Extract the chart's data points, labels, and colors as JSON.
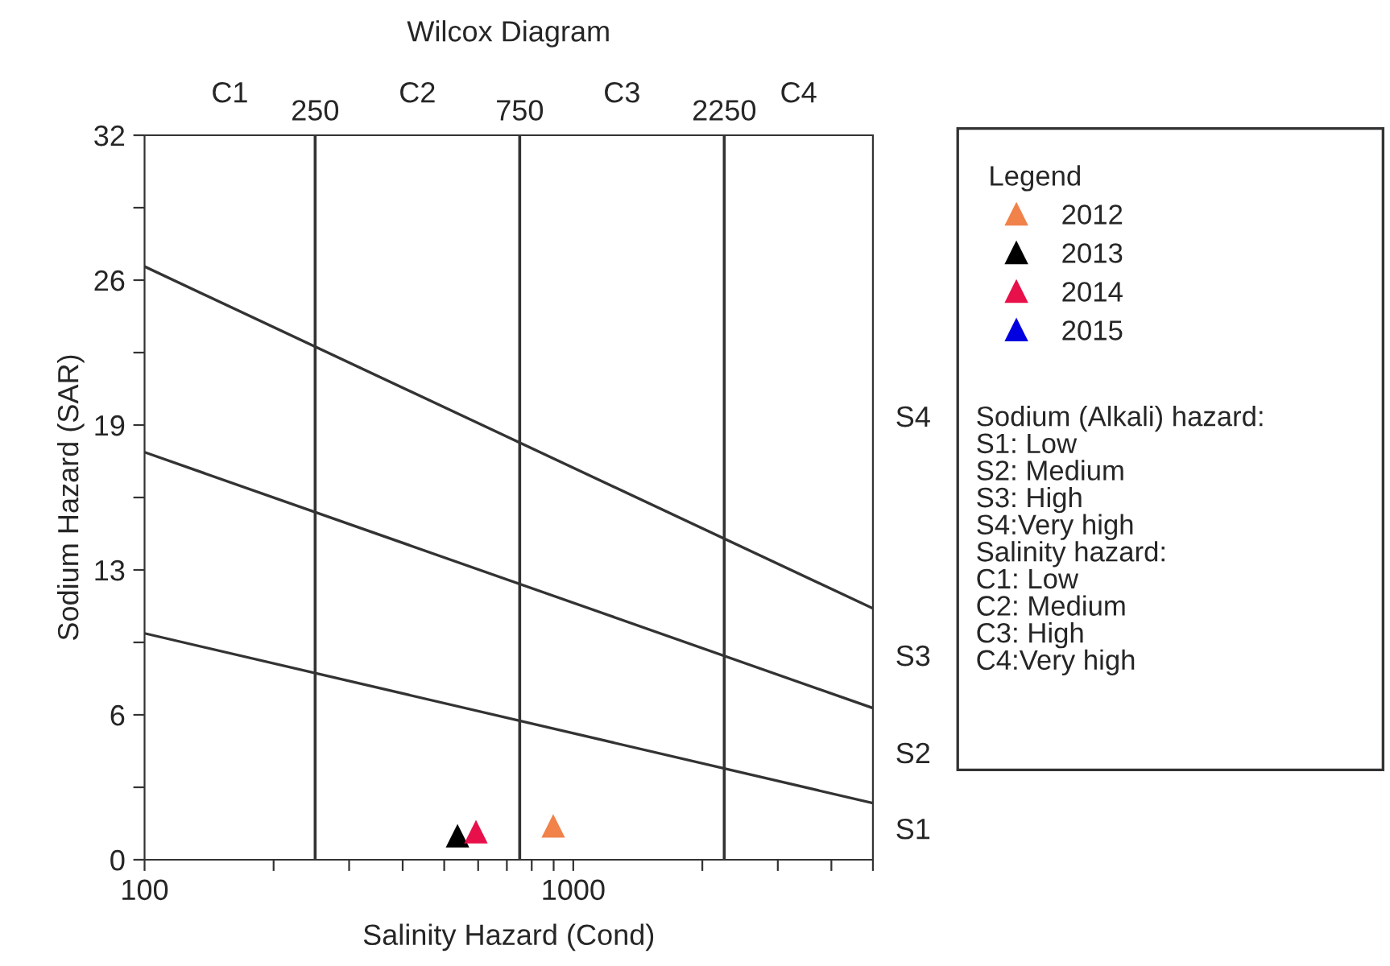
{
  "chart_data": {
    "type": "scatter",
    "title": "Wilcox Diagram",
    "xlabel": "Salinity Hazard (Cond)",
    "ylabel": "Sodium Hazard (SAR)",
    "legend_title": "Legend",
    "log": "x",
    "xlim": [
      100,
      5000
    ],
    "ylim": [
      0,
      32
    ],
    "xticks": [
      100,
      {
        "value": 200,
        "label": null
      },
      {
        "value": 300,
        "label": null
      },
      {
        "value": 400,
        "label": null
      },
      {
        "value": 500,
        "label": null
      },
      {
        "value": 600,
        "label": null
      },
      {
        "value": 700,
        "label": null
      },
      {
        "value": 800,
        "label": null
      },
      {
        "value": 900,
        "label": null
      },
      1000,
      {
        "value": 2000,
        "label": null
      },
      {
        "value": 3000,
        "label": null
      },
      {
        "value": 4000,
        "label": null
      },
      {
        "value": 5000,
        "label": null
      }
    ],
    "yticks": [
      0,
      {
        "value": 3.2,
        "label": null
      },
      {
        "value": 6.4,
        "label": "6"
      },
      {
        "value": 9.6,
        "label": null
      },
      {
        "value": 12.8,
        "label": "13"
      },
      {
        "value": 16,
        "label": null
      },
      {
        "value": 19.2,
        "label": "19"
      },
      {
        "value": 22.4,
        "label": null
      },
      {
        "value": 25.6,
        "label": "26"
      },
      {
        "value": 28.8,
        "label": null
      },
      32
    ],
    "marker": "triangle",
    "grid": false,
    "legend": "right",
    "series": [
      {
        "name": "2012",
        "color": "#f0824a",
        "x": [
          898
        ],
        "values": [
          1.5
        ]
      },
      {
        "name": "2013",
        "color": "#000000",
        "x": [
          537
        ],
        "values": [
          1.06
        ]
      },
      {
        "name": "2014",
        "color": "#e8104a",
        "x": [
          593
        ],
        "values": [
          1.24
        ]
      },
      {
        "name": "2015",
        "color": "#0000e0",
        "x": [
          null
        ],
        "values": [
          null
        ]
      },
      {
        "type": "line",
        "color": "#333333",
        "marker": "none",
        "x": [
          100,
          5000
        ],
        "values": [
          26.2,
          11.1
        ]
      },
      {
        "type": "line",
        "color": "#333333",
        "marker": "none",
        "x": [
          100,
          5000
        ],
        "values": [
          18.0,
          6.7
        ]
      },
      {
        "type": "line",
        "color": "#333333",
        "marker": "none",
        "x": [
          100,
          5000
        ],
        "values": [
          10.0,
          2.5
        ]
      }
    ],
    "ref_lines": [
      {
        "axis": "x",
        "value": 250,
        "label": "250",
        "color": "#333333"
      },
      {
        "axis": "x",
        "value": 750,
        "label": "750",
        "color": "#333333"
      },
      {
        "axis": "x",
        "value": 2250,
        "label": "2250",
        "color": "#333333"
      }
    ],
    "annotations": [
      "C1",
      "C2",
      "C3",
      "C4",
      "S1",
      "S2",
      "S3",
      "S4",
      "Sodium (Alkali) hazard:",
      "S1: Low",
      "S2: Medium",
      "S3: High",
      "S4:Very high",
      "Salinity hazard:",
      "C1: Low",
      "C2: Medium",
      "C3: High",
      "C4:Very high"
    ]
  }
}
